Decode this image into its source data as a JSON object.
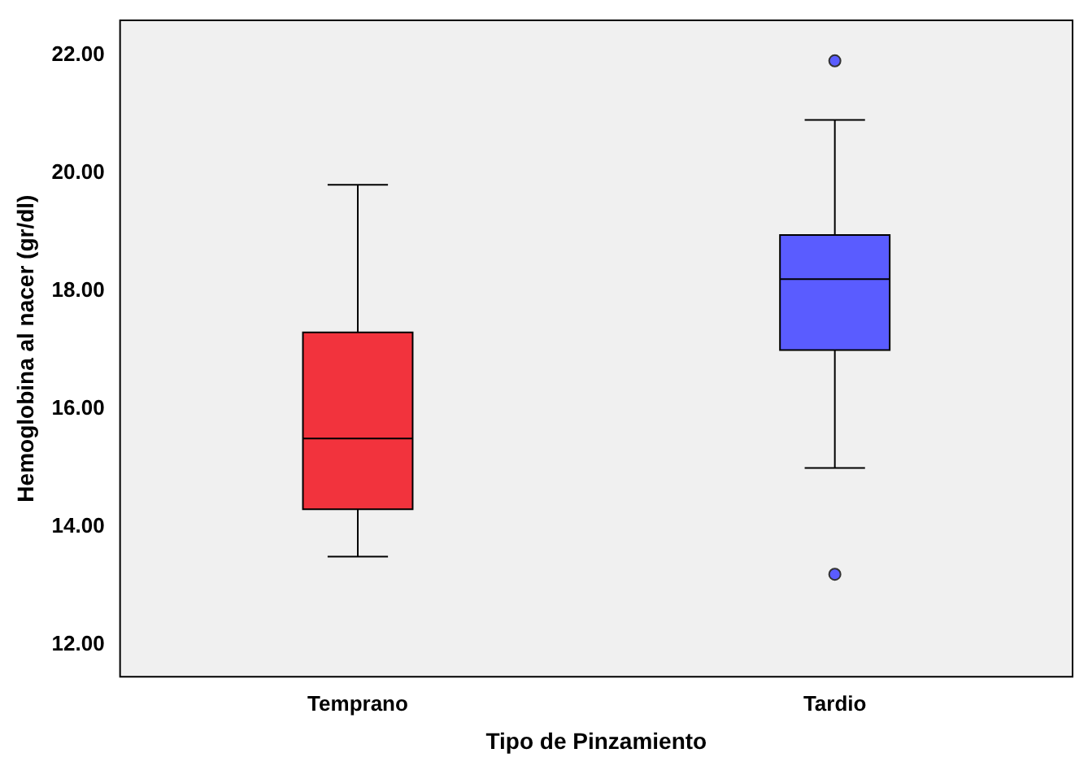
{
  "chart_data": {
    "type": "box",
    "xlabel": "Tipo de Pinzamiento",
    "ylabel": "Hemoglobina al nacer (gr/dl)",
    "categories": [
      "Temprano",
      "Tardio"
    ],
    "colors": [
      "#f2333d",
      "#5a5cff"
    ],
    "boxes": [
      {
        "low": 13.5,
        "q1": 14.3,
        "median": 15.5,
        "q3": 17.3,
        "high": 19.8
      },
      {
        "low": 15.0,
        "q1": 17.0,
        "median": 18.2,
        "q3": 18.95,
        "high": 20.9,
        "outliers": [
          21.9,
          13.2
        ]
      }
    ],
    "ylim": [
      11.45,
      22.6
    ],
    "yticks": [
      {
        "value": 12,
        "label": "12.00"
      },
      {
        "value": 14,
        "label": "14.00"
      },
      {
        "value": 16,
        "label": "16.00"
      },
      {
        "value": 18,
        "label": "18.00"
      },
      {
        "value": 20,
        "label": "20.00"
      },
      {
        "value": 22,
        "label": "22.00"
      }
    ],
    "grid": false,
    "legend": false
  }
}
